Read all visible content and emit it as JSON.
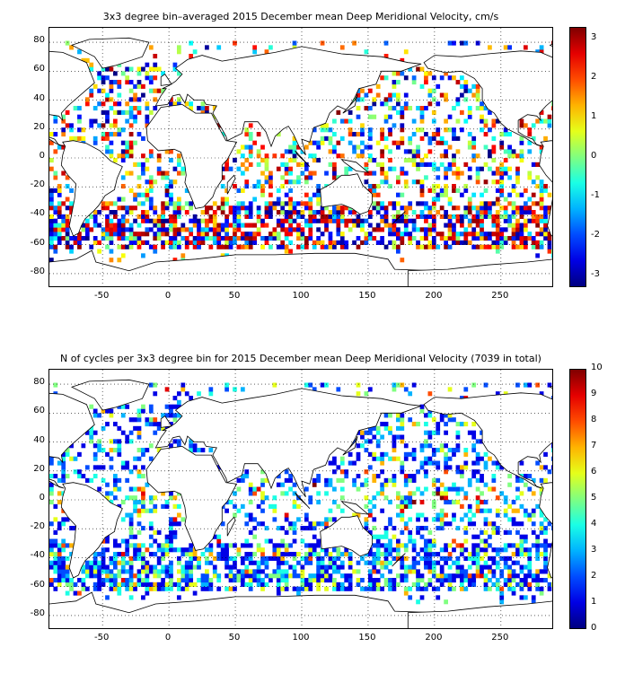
{
  "chart_data": [
    {
      "type": "heatmap",
      "title": "3x3 degree bin–averaged 2015 December mean Deep Meridional Velocity, cm/s",
      "x_ticks": [
        "-50",
        "0",
        "50",
        "100",
        "150",
        "200",
        "250"
      ],
      "y_ticks": [
        "80",
        "60",
        "40",
        "20",
        "0",
        "-20",
        "-40",
        "-60",
        "-80"
      ],
      "xlim": [
        -90,
        290
      ],
      "ylim": [
        -90,
        90
      ],
      "bin_size_deg": 3,
      "colorbar": {
        "colormap": "jet",
        "range": [
          -3.3,
          3.3
        ],
        "ticks": [
          "3",
          "2",
          "1",
          "0",
          "-1",
          "-2",
          "-3"
        ]
      },
      "grid": true,
      "background": "world coastline map"
    },
    {
      "type": "heatmap",
      "title": "N of cycles per 3x3 degree bin for 2015 December mean Deep Meridional Velocity (7039 in total)",
      "x_ticks": [
        "-50",
        "0",
        "50",
        "100",
        "150",
        "200",
        "250"
      ],
      "y_ticks": [
        "80",
        "60",
        "40",
        "20",
        "0",
        "-20",
        "-40",
        "-60",
        "-80"
      ],
      "xlim": [
        -90,
        290
      ],
      "ylim": [
        -90,
        90
      ],
      "bin_size_deg": 3,
      "total_cycles": 7039,
      "colorbar": {
        "colormap": "jet",
        "range": [
          0,
          10
        ],
        "ticks": [
          "10",
          "9",
          "8",
          "7",
          "6",
          "5",
          "4",
          "3",
          "2",
          "1",
          "0"
        ]
      },
      "grid": true,
      "background": "world coastline map"
    }
  ]
}
